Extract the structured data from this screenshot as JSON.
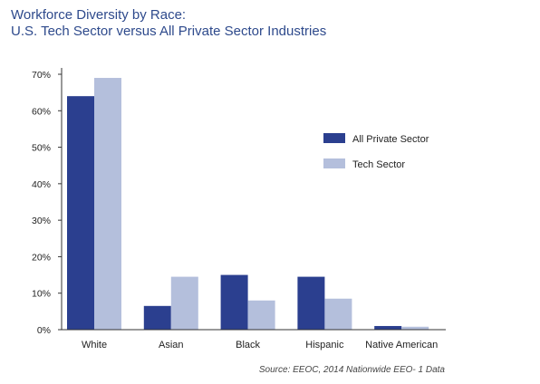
{
  "chart_data": {
    "type": "bar",
    "title": "Workforce Diversity by Race:",
    "subtitle": "U.S. Tech Sector versus All Private Sector Industries",
    "categories": [
      "White",
      "Asian",
      "Black",
      "Hispanic",
      "Native American"
    ],
    "series": [
      {
        "name": "All Private Sector",
        "values": [
          64,
          6.5,
          15,
          14.5,
          1
        ],
        "color": "#2b3f8f"
      },
      {
        "name": "Tech Sector",
        "values": [
          69,
          14.5,
          8,
          8.5,
          0.8
        ],
        "color": "#b4bfdc"
      }
    ],
    "yticks": [
      "0%",
      "10%",
      "20%",
      "30%",
      "40%",
      "50%",
      "60%",
      "70%"
    ],
    "ylim": [
      0,
      70
    ],
    "xlabel": "",
    "ylabel": "",
    "grid": false,
    "legend_position": "right",
    "source": "Source: EEOC, 2014 Nationwide EEO- 1 Data"
  }
}
